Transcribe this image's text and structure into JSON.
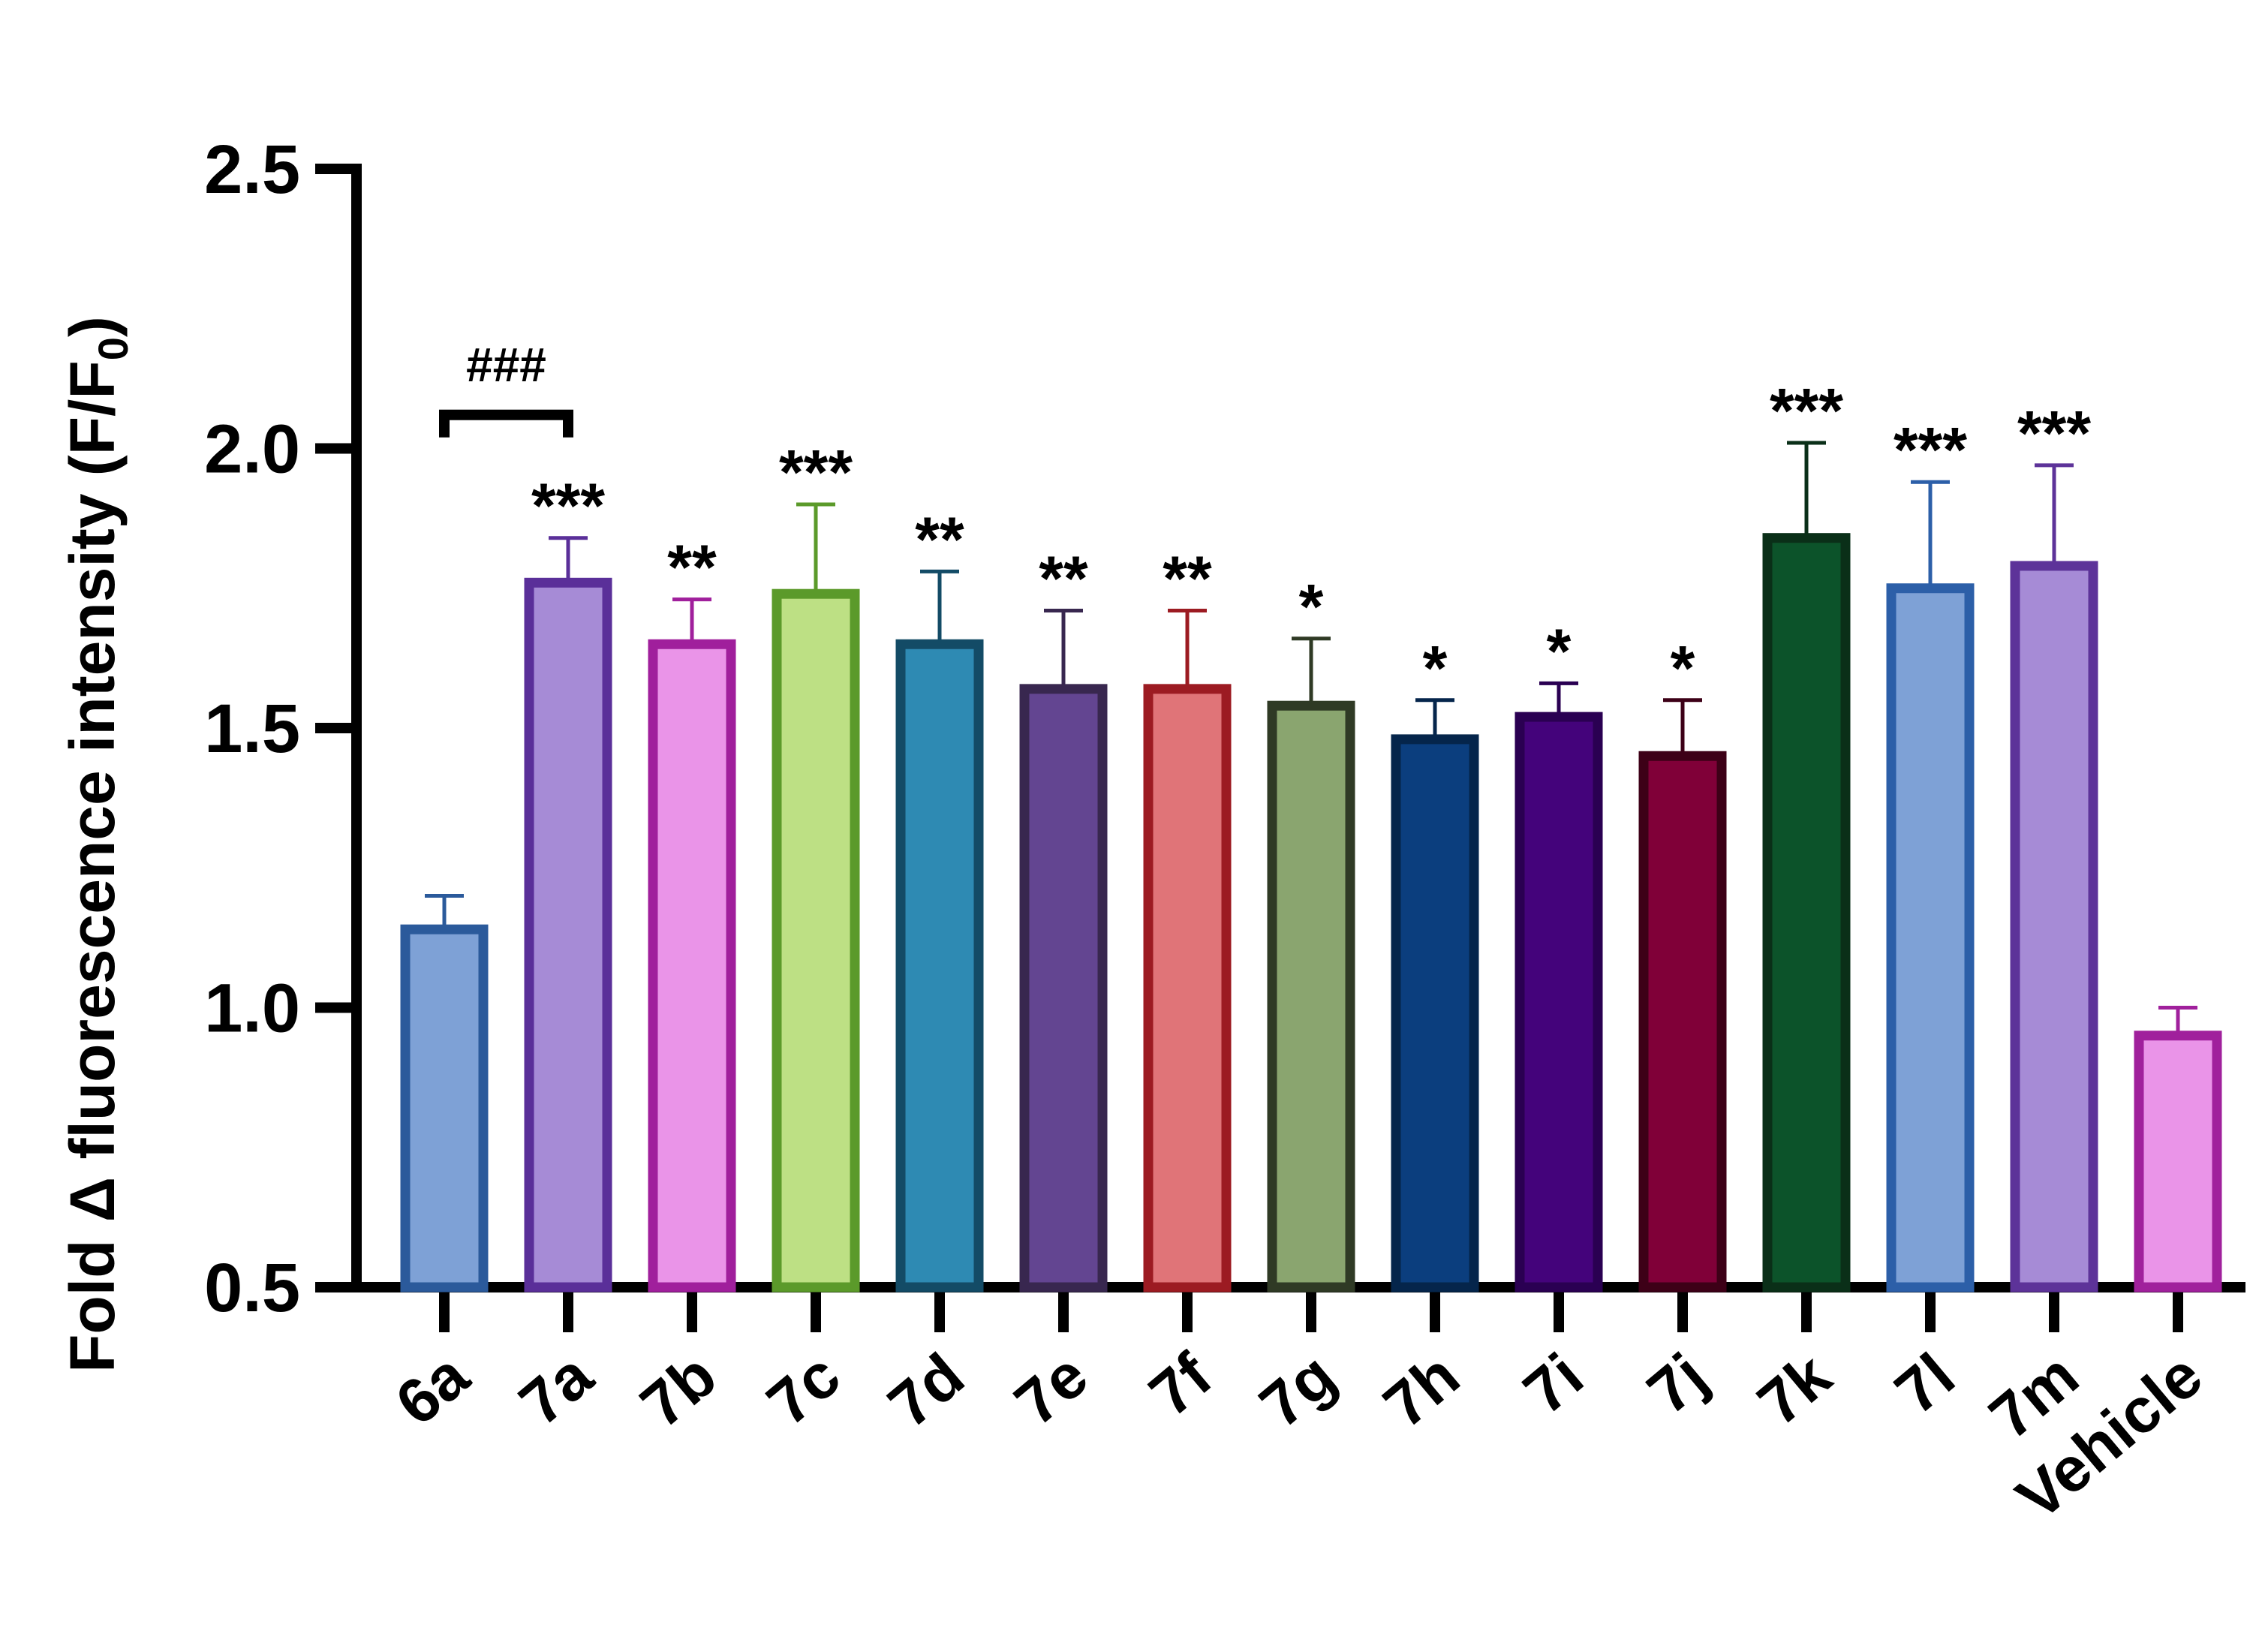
{
  "chart_data": {
    "type": "bar",
    "ylabel": "Fold Δ fluorescence intensity (F/F",
    "ylabel_sub": "0",
    "ylabel_close": ")",
    "ylim": [
      0.5,
      2.5
    ],
    "yticks": [
      0.5,
      1.0,
      1.5,
      2.0,
      2.5
    ],
    "ytick_labels": [
      "0.5",
      "1.0",
      "1.5",
      "2.0",
      "2.5"
    ],
    "grid": false,
    "categories": [
      "6a",
      "7a",
      "7b",
      "7c",
      "7d",
      "7e",
      "7f",
      "7g",
      "7h",
      "7i",
      "7j",
      "7k",
      "7l",
      "7m",
      "Vehicle"
    ],
    "values": [
      1.14,
      1.76,
      1.65,
      1.74,
      1.65,
      1.57,
      1.57,
      1.54,
      1.48,
      1.52,
      1.45,
      1.84,
      1.75,
      1.79,
      0.95
    ],
    "errors": [
      0.06,
      0.08,
      0.08,
      0.16,
      0.13,
      0.14,
      0.14,
      0.12,
      0.07,
      0.06,
      0.1,
      0.17,
      0.19,
      0.18,
      0.05
    ],
    "significance": [
      "",
      "***",
      "**",
      "***",
      "**",
      "**",
      "**",
      "*",
      "*",
      "*",
      "*",
      "***",
      "***",
      "***",
      ""
    ],
    "bracket": {
      "from": "6a",
      "to": "7a",
      "label": "###",
      "y": 2.06
    },
    "fill_colors": [
      "#7ea1d6",
      "#a68bd6",
      "#ea94e8",
      "#bde084",
      "#2e8ab3",
      "#634591",
      "#e07478",
      "#8aa56f",
      "#0b3e7e",
      "#44037b",
      "#800038",
      "#0c532a",
      "#7ea1d6",
      "#a68bd6",
      "#ea94e8"
    ],
    "edge_colors": [
      "#2b5a9b",
      "#5a2f99",
      "#a01f9c",
      "#5b9a2a",
      "#134b66",
      "#38274f",
      "#9c1b22",
      "#2f3a25",
      "#05254b",
      "#2a0052",
      "#3d0017",
      "#0a2f18",
      "#2c5fa8",
      "#5d3399",
      "#a0209c"
    ]
  }
}
